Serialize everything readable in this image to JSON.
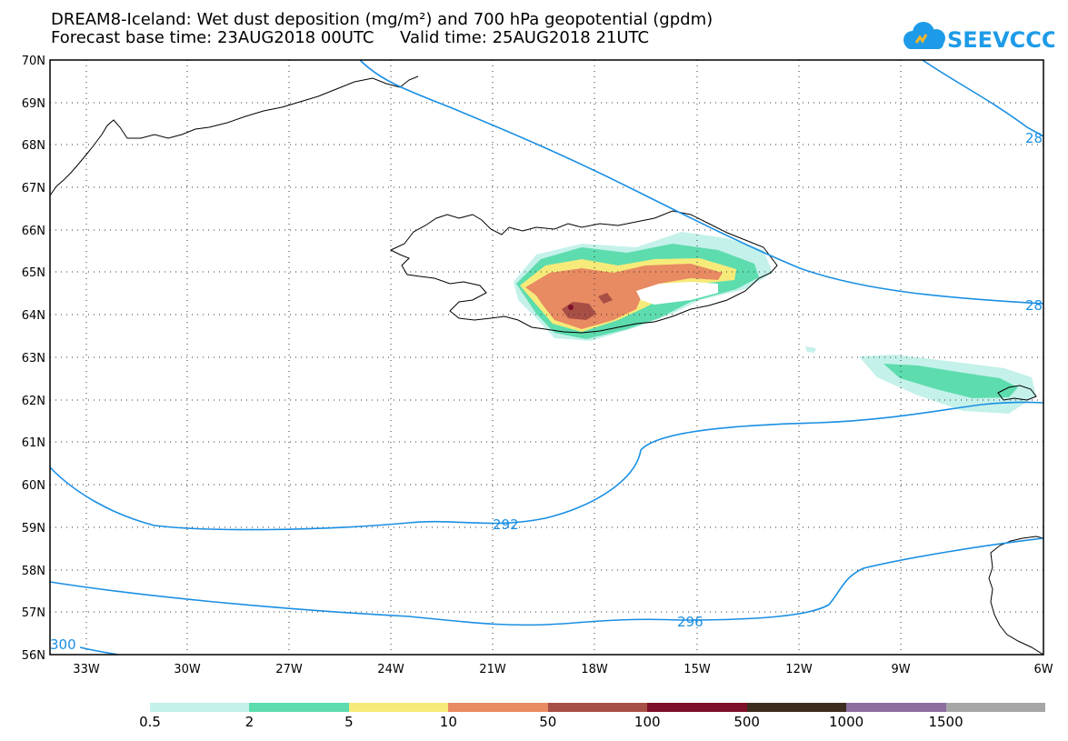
{
  "header": {
    "title_line1": "DREAM8-Iceland: Wet dust deposition (mg/m²) and 700 hPa geopotential (gpdm)",
    "title_line2": "Forecast base time: 23AUG2018 00UTC     Valid time: 25AUG2018 21UTC"
  },
  "logo": {
    "text": "SEEVCCC",
    "color": "#1e9be8",
    "icon": "cloud-icon"
  },
  "map": {
    "lat_labels": [
      "70N",
      "69N",
      "68N",
      "67N",
      "66N",
      "65N",
      "64N",
      "63N",
      "62N",
      "61N",
      "60N",
      "59N",
      "58N",
      "57N",
      "56N"
    ],
    "lon_labels": [
      "33W",
      "30W",
      "27W",
      "24W",
      "21W",
      "18W",
      "15W",
      "12W",
      "9W",
      "6W"
    ],
    "lat_range": [
      56,
      70
    ],
    "lon_range": [
      -34.5,
      -6
    ],
    "gridlines": "dotted",
    "contour_color": "#1a8fe3",
    "contour_labels": [
      "292",
      "296",
      "300",
      "28",
      "28"
    ]
  },
  "legend": {
    "colors": [
      "#c4f1ea",
      "#5ddcae",
      "#f6eb7a",
      "#e88a62",
      "#a84f45",
      "#7d1028",
      "#3e2c1f",
      "#8c6d9e",
      "#a6a6a6"
    ],
    "labels": [
      "0.5",
      "2",
      "5",
      "10",
      "50",
      "100",
      "500",
      "1000",
      "1500"
    ]
  }
}
